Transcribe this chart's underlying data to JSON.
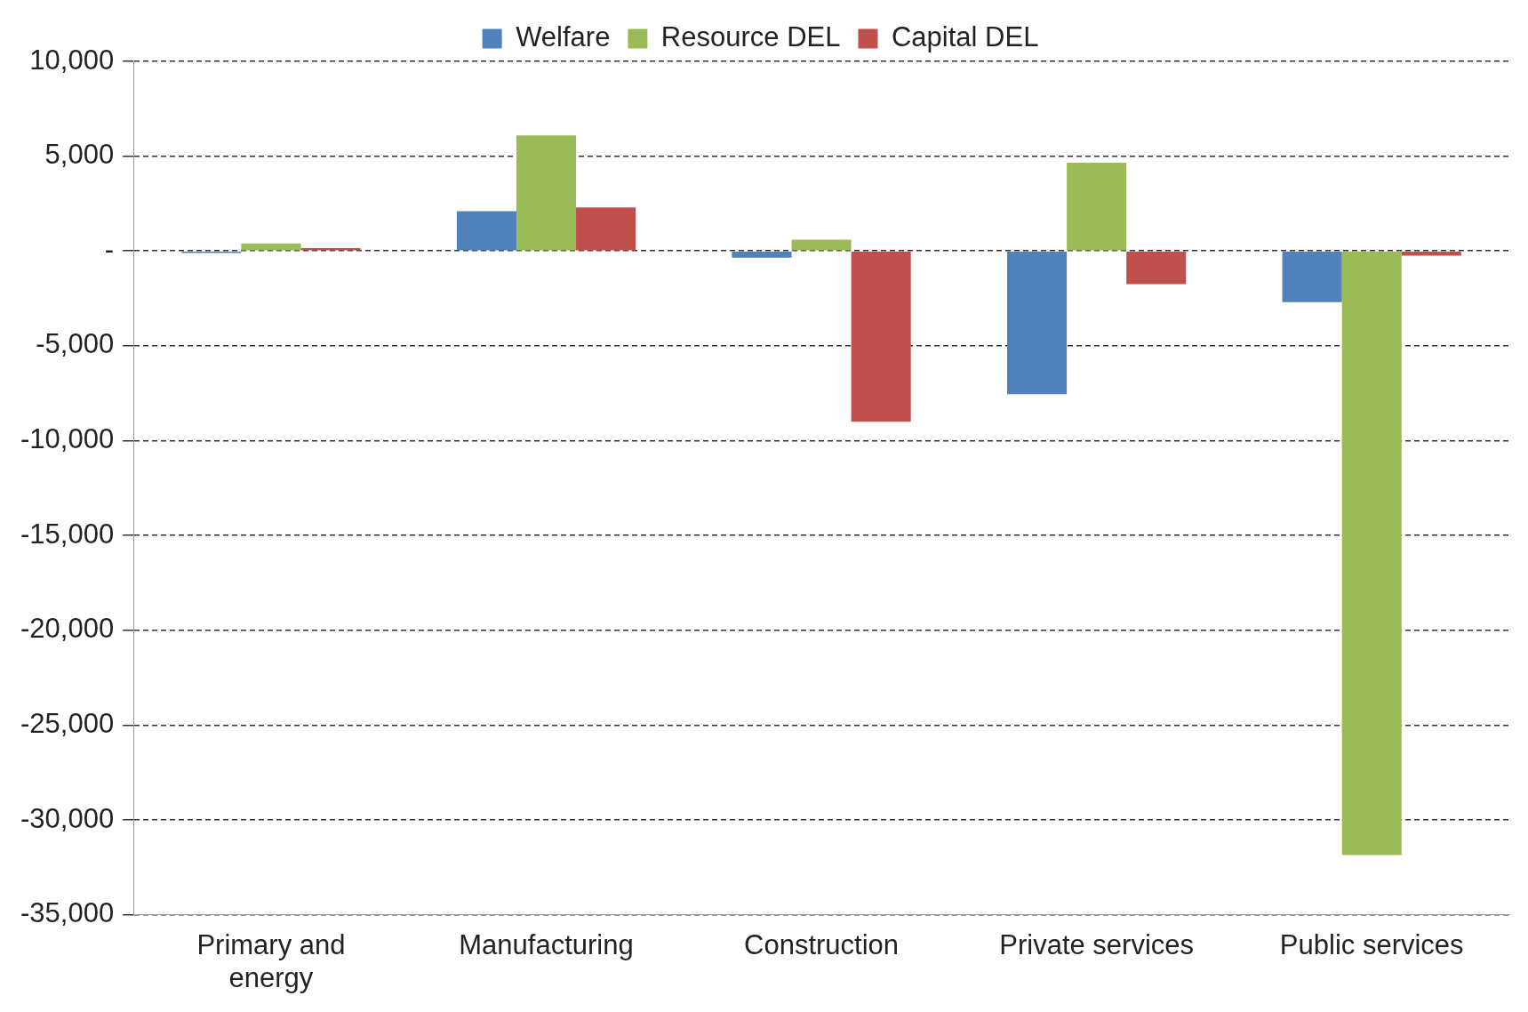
{
  "chart_data": {
    "type": "bar",
    "categories": [
      "Primary and energy",
      "Manufacturing",
      "Construction",
      "Private services",
      "Public services"
    ],
    "series": [
      {
        "name": "Welfare",
        "color": "#4f81bd",
        "values": [
          -100,
          2100,
          -350,
          -7550,
          -2700
        ]
      },
      {
        "name": "Resource DEL",
        "color": "#9bbb59",
        "values": [
          400,
          6100,
          600,
          4650,
          -31850
        ]
      },
      {
        "name": "Capital DEL",
        "color": "#c0504d",
        "values": [
          150,
          2300,
          -9000,
          -1750,
          -250
        ]
      }
    ],
    "ylim": [
      -35000,
      10000
    ],
    "yticks": [
      {
        "value": -35000,
        "label": "-35,000"
      },
      {
        "value": -30000,
        "label": "-30,000"
      },
      {
        "value": -25000,
        "label": "-25,000"
      },
      {
        "value": -20000,
        "label": "-20,000"
      },
      {
        "value": -15000,
        "label": "-15,000"
      },
      {
        "value": -10000,
        "label": "-10,000"
      },
      {
        "value": -5000,
        "label": "-5,000"
      },
      {
        "value": 0,
        "label": "-"
      },
      {
        "value": 5000,
        "label": "5,000"
      },
      {
        "value": 10000,
        "label": "10,000"
      }
    ],
    "grid": "y",
    "legend": "top"
  }
}
